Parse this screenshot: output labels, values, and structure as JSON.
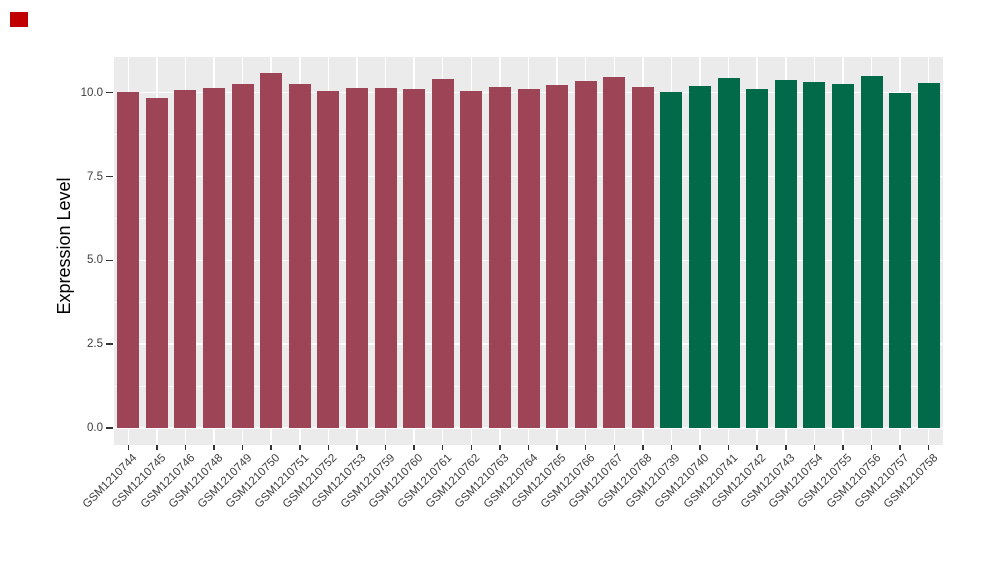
{
  "page": {
    "background": "#FFFFFF",
    "corner_marker_color": "#C00000"
  },
  "chart_data": {
    "type": "bar",
    "title": "",
    "xlabel": "",
    "ylabel": "Expression Level",
    "ylim": [
      -0.5,
      11.05
    ],
    "yticks": [
      0,
      2.5,
      5,
      7.5,
      10
    ],
    "ytick_labels": [
      "0.0",
      "2.5",
      "5.0",
      "7.5",
      "10.0"
    ],
    "yticks_minor": [
      1.25,
      3.75,
      6.25,
      8.75
    ],
    "grid": true,
    "legend_position": "none",
    "panel_background": "#EBEBEB",
    "gridline_color": "#FFFFFF",
    "axis_text_color": "#3E3E3E",
    "tick_mark_color": "#333333",
    "group_colors": {
      "red": "#9D4456",
      "green": "#026949"
    },
    "categories": [
      "GSM1210744",
      "GSM1210745",
      "GSM1210746",
      "GSM1210748",
      "GSM1210749",
      "GSM1210750",
      "GSM1210751",
      "GSM1210752",
      "GSM1210753",
      "GSM1210759",
      "GSM1210760",
      "GSM1210761",
      "GSM1210762",
      "GSM1210763",
      "GSM1210764",
      "GSM1210765",
      "GSM1210766",
      "GSM1210767",
      "GSM1210768",
      "GSM1210739",
      "GSM1210740",
      "GSM1210741",
      "GSM1210742",
      "GSM1210743",
      "GSM1210754",
      "GSM1210755",
      "GSM1210756",
      "GSM1210757",
      "GSM1210758"
    ],
    "values": [
      10.02,
      9.83,
      10.09,
      10.14,
      10.26,
      10.58,
      10.27,
      10.05,
      10.14,
      10.13,
      10.11,
      10.41,
      10.04,
      10.17,
      10.11,
      10.24,
      10.34,
      10.46,
      10.17,
      10.02,
      10.19,
      10.43,
      10.12,
      10.37,
      10.32,
      10.26,
      10.5,
      9.98,
      10.28
    ],
    "bar_groups": [
      "red",
      "red",
      "red",
      "red",
      "red",
      "red",
      "red",
      "red",
      "red",
      "red",
      "red",
      "red",
      "red",
      "red",
      "red",
      "red",
      "red",
      "red",
      "red",
      "green",
      "green",
      "green",
      "green",
      "green",
      "green",
      "green",
      "green",
      "green",
      "green"
    ]
  }
}
